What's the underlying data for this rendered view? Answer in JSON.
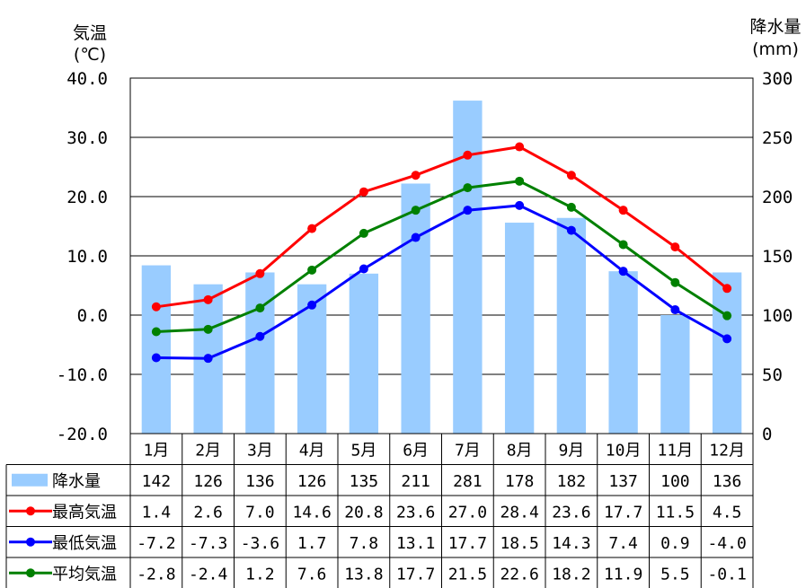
{
  "chart_data": {
    "type": "bar+line",
    "categories": [
      "1月",
      "2月",
      "3月",
      "4月",
      "5月",
      "6月",
      "7月",
      "8月",
      "9月",
      "10月",
      "11月",
      "12月"
    ],
    "left_axis": {
      "label_line1": "気温",
      "label_line2": "(℃)",
      "ylim": [
        -20,
        40
      ],
      "ticks": [
        "40.0",
        "30.0",
        "20.0",
        "10.0",
        "0.0",
        "-10.0",
        "-20.0"
      ]
    },
    "right_axis": {
      "label_line1": "降水量",
      "label_line2": "(mm)",
      "ylim": [
        0,
        300
      ],
      "ticks": [
        "300",
        "250",
        "200",
        "150",
        "100",
        "50",
        "0"
      ]
    },
    "series": [
      {
        "name": "降水量",
        "kind": "bar",
        "axis": "right",
        "color": "#99ccff",
        "values": [
          142,
          126,
          136,
          126,
          135,
          211,
          281,
          178,
          182,
          137,
          100,
          136
        ]
      },
      {
        "name": "最高気温",
        "kind": "line",
        "axis": "left",
        "color": "#ff0000",
        "values": [
          1.4,
          2.6,
          7.0,
          14.6,
          20.8,
          23.6,
          27.0,
          28.4,
          23.6,
          17.7,
          11.5,
          4.5
        ],
        "labels": [
          "1.4",
          "2.6",
          "7.0",
          "14.6",
          "20.8",
          "23.6",
          "27.0",
          "28.4",
          "23.6",
          "17.7",
          "11.5",
          "4.5"
        ]
      },
      {
        "name": "最低気温",
        "kind": "line",
        "axis": "left",
        "color": "#0000ff",
        "values": [
          -7.2,
          -7.3,
          -3.6,
          1.7,
          7.8,
          13.1,
          17.7,
          18.5,
          14.3,
          7.4,
          0.9,
          -4.0
        ],
        "labels": [
          "-7.2",
          "-7.3",
          "-3.6",
          "1.7",
          "7.8",
          "13.1",
          "17.7",
          "18.5",
          "14.3",
          "7.4",
          "0.9",
          "-4.0"
        ]
      },
      {
        "name": "平均気温",
        "kind": "line",
        "axis": "left",
        "color": "#008000",
        "values": [
          -2.8,
          -2.4,
          1.2,
          7.6,
          13.8,
          17.7,
          21.5,
          22.6,
          18.2,
          11.9,
          5.5,
          -0.1
        ],
        "labels": [
          "-2.8",
          "-2.4",
          "1.2",
          "7.6",
          "13.8",
          "17.7",
          "21.5",
          "22.6",
          "18.2",
          "11.9",
          "5.5",
          "-0.1"
        ]
      }
    ],
    "grid": true,
    "legend": "data-table-left"
  }
}
